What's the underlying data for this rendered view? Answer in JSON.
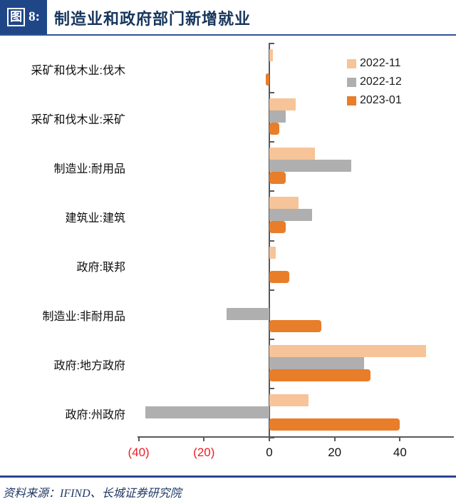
{
  "header": {
    "figure_char": "图",
    "figure_number": "8:",
    "title": "制造业和政府部门新增就业"
  },
  "footer": {
    "source_text": "资料来源：IFIND、长城证券研究院"
  },
  "chart_data": {
    "type": "bar",
    "orientation": "horizontal",
    "title": "制造业和政府部门新增就业",
    "categories": [
      "采矿和伐木业:伐木",
      "采矿和伐木业:采矿",
      "制造业:耐用品",
      "建筑业:建筑",
      "政府:联邦",
      "制造业:非耐用品",
      "政府:地方政府",
      "政府:州政府"
    ],
    "series": [
      {
        "name": "2022-11",
        "color": "#F6C498",
        "values": [
          1,
          8,
          14,
          9,
          2,
          0,
          48,
          12
        ]
      },
      {
        "name": "2022-12",
        "color": "#AFAFAF",
        "values": [
          0,
          5,
          25,
          13,
          0,
          -13,
          29,
          -38
        ]
      },
      {
        "name": "2023-01",
        "color": "#E87D2A",
        "values": [
          -1,
          3,
          5,
          5,
          6,
          16,
          31,
          40
        ]
      }
    ],
    "x_axis": {
      "range": [
        -40.4,
        56.5
      ],
      "ticks": [
        -40,
        -20,
        0,
        20,
        40
      ],
      "tick_labels": [
        "(40)",
        "(20)",
        "0",
        "20",
        "40"
      ],
      "negative_label_color": "#ED1C24",
      "positive_label_color": "#111111"
    },
    "legend_position": "top-right",
    "grid": false
  }
}
